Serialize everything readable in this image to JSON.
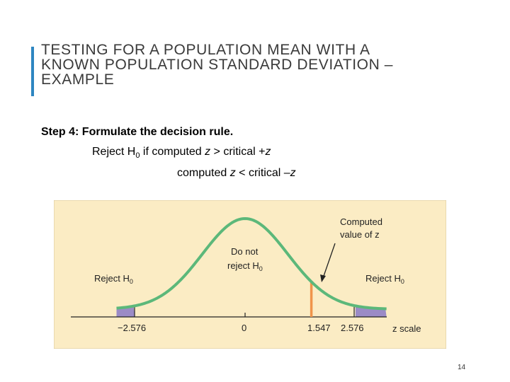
{
  "slide": {
    "title_lines": [
      "TESTING FOR A POPULATION MEAN WITH A",
      "KNOWN POPULATION STANDARD DEVIATION –",
      "EXAMPLE"
    ],
    "step_heading": "Step 4: Formulate the decision rule.",
    "rule_line1": {
      "prefix": "Reject H",
      "sub": "0",
      "middle": " if computed ",
      "z1": "z",
      "after_z1": " > critical +",
      "z2": "z"
    },
    "rule_line2": {
      "prefix": "computed ",
      "z1": "z",
      "middle": " < critical –",
      "z2": "z"
    },
    "page_number": "14",
    "accent_color": "#2e86c1"
  },
  "figure": {
    "background_color": "#fbecc4",
    "curve_color": "#5cb87a",
    "tail_color": "#9b8bc6",
    "marker_color": "#f0944a",
    "labels": {
      "reject_left": "Reject H",
      "reject_left_sub": "0",
      "reject_right": "Reject H",
      "reject_right_sub": "0",
      "do_not_line1": "Do not",
      "do_not_line2": "reject H",
      "do_not_sub": "0",
      "computed_line1": "Computed",
      "computed_line2": "value of z",
      "axis_label": "z scale"
    },
    "ticks": [
      "−2.576",
      "0",
      "1.547",
      "2.576"
    ],
    "critical_value": 2.576,
    "computed_z": 1.547
  }
}
